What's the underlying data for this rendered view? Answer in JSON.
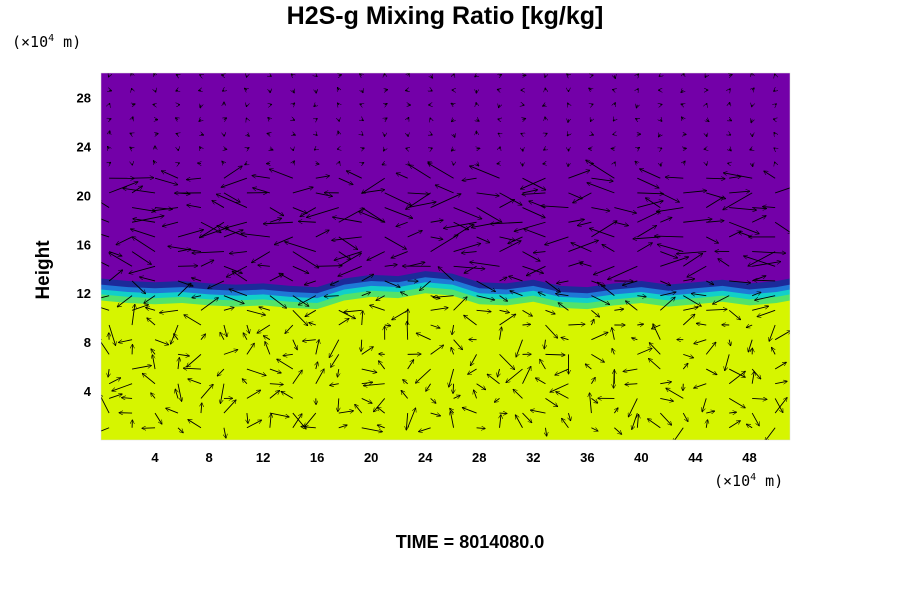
{
  "title": "H2S-g Mixing Ratio [kg/kg]",
  "y_unit": {
    "base": "(×10",
    "exp": "4",
    "tail": " m)"
  },
  "x_unit": {
    "base": "(×10",
    "exp": "4",
    "tail": " m)"
  },
  "time_label": "TIME = 8014080.0",
  "chart_data": {
    "type": "heatmap",
    "title": "H2S-g Mixing Ratio [kg/kg]",
    "xlabel": "",
    "ylabel": "Height",
    "x_unit": "×10^4 m",
    "y_unit": "×10^4 m",
    "xlim": [
      0,
      51
    ],
    "ylim": [
      0,
      30
    ],
    "x_ticks": [
      4,
      8,
      12,
      16,
      20,
      24,
      28,
      32,
      36,
      40,
      44,
      48
    ],
    "y_ticks": [
      4,
      8,
      12,
      16,
      20,
      24,
      28
    ],
    "overlay": "velocity vectors (arrows)",
    "colors": {
      "upper_layer": "#7300a8",
      "transition_dark": "#1c2a9a",
      "transition_blue": "#1e78d6",
      "transition_cyan": "#11d0c8",
      "transition_green": "#52e36a",
      "lower_layer": "#d6f500"
    },
    "layer_interface_height": [
      [
        0,
        13.2
      ],
      [
        2,
        13.0
      ],
      [
        4,
        12.9
      ],
      [
        6,
        13.0
      ],
      [
        8,
        12.8
      ],
      [
        10,
        12.7
      ],
      [
        12,
        12.8
      ],
      [
        14,
        12.6
      ],
      [
        16,
        12.5
      ],
      [
        18,
        13.2
      ],
      [
        20,
        13.5
      ],
      [
        22,
        13.4
      ],
      [
        24,
        13.8
      ],
      [
        26,
        13.6
      ],
      [
        28,
        12.9
      ],
      [
        30,
        12.8
      ],
      [
        32,
        13.1
      ],
      [
        34,
        12.6
      ],
      [
        36,
        12.5
      ],
      [
        38,
        12.8
      ],
      [
        40,
        13.0
      ],
      [
        42,
        12.7
      ],
      [
        44,
        12.9
      ],
      [
        46,
        13.1
      ],
      [
        48,
        12.8
      ],
      [
        50,
        13.0
      ],
      [
        51,
        13.2
      ]
    ]
  }
}
